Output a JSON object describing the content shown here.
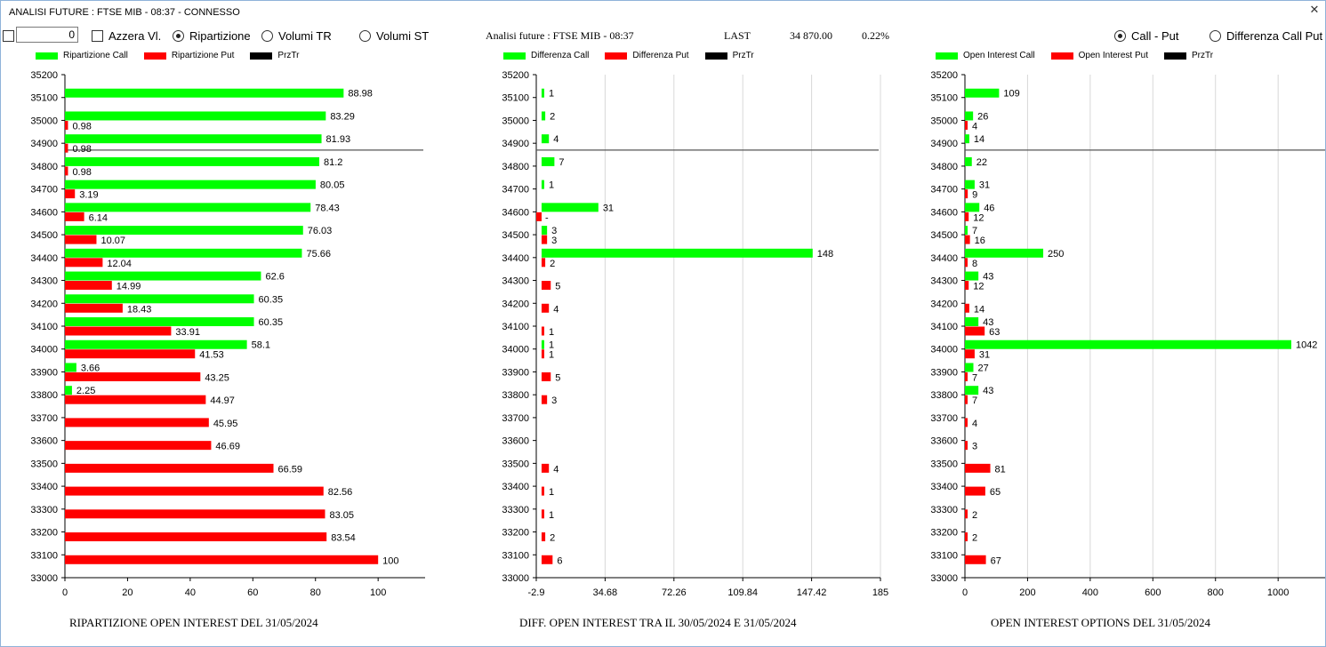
{
  "window": {
    "title": "ANALISI FUTURE : FTSE MIB - 08:37 - CONNESSO"
  },
  "toolbar": {
    "spin_value": "0",
    "azzera_label": "Azzera Vl.",
    "radio_ripartizione": "Ripartizione",
    "radio_volumi_tr": "Volumi TR",
    "radio_volumi_st": "Volumi ST",
    "radio_call_put": "Call - Put",
    "radio_diff_call_put": "Differenza Call Put"
  },
  "info": {
    "label": "Analisi future : FTSE MIB - 08:37",
    "last_label": "LAST",
    "last_value": "34 870.00",
    "change": "0.22%"
  },
  "colors": {
    "call": "#00ff00",
    "put": "#ff0000",
    "prz": "#000000",
    "grid": "#d8d8d8",
    "price_line": "#555555"
  },
  "chart_data": [
    {
      "type": "bar",
      "title": "RIPARTIZIONE OPEN INTEREST DEL 31/05/2024",
      "legend": [
        "Ripartizione Call",
        "Ripartizione Put",
        "PrzTr"
      ],
      "categories": [
        35200,
        35100,
        35000,
        34900,
        34800,
        34700,
        34600,
        34500,
        34400,
        34300,
        34200,
        34100,
        34000,
        33900,
        33800,
        33700,
        33600,
        33500,
        33400,
        33300,
        33200,
        33100,
        33000
      ],
      "series": [
        {
          "name": "Ripartizione Call",
          "values": [
            null,
            88.98,
            83.29,
            81.93,
            81.2,
            80.05,
            78.43,
            76.03,
            75.66,
            62.6,
            60.35,
            60.35,
            58.1,
            3.66,
            2.25,
            null,
            null,
            null,
            null,
            null,
            null,
            null,
            null
          ]
        },
        {
          "name": "Ripartizione Put",
          "values": [
            null,
            null,
            0.98,
            0.98,
            0.98,
            3.19,
            6.14,
            10.07,
            12.04,
            14.99,
            18.43,
            33.91,
            41.53,
            43.25,
            44.97,
            45.95,
            46.69,
            66.59,
            82.56,
            83.05,
            83.54,
            100,
            null
          ]
        }
      ],
      "xlim": [
        0,
        115
      ],
      "xticks": [
        0,
        20,
        40,
        60,
        80,
        100
      ],
      "xgrid": false,
      "price_level": 34870
    },
    {
      "type": "bar",
      "title": "DIFF. OPEN INTEREST TRA IL 30/05/2024 E 31/05/2024",
      "legend": [
        "Differenza Call",
        "Differenza Put",
        "PrzTr"
      ],
      "categories": [
        35200,
        35100,
        35000,
        34900,
        34800,
        34700,
        34600,
        34500,
        34400,
        34300,
        34200,
        34100,
        34000,
        33900,
        33800,
        33700,
        33600,
        33500,
        33400,
        33300,
        33200,
        33100,
        33000
      ],
      "series": [
        {
          "name": "Differenza Call",
          "values": [
            null,
            1,
            2,
            4,
            7,
            1,
            31,
            3,
            148,
            null,
            null,
            null,
            1,
            null,
            null,
            null,
            null,
            null,
            null,
            null,
            null,
            null,
            null
          ]
        },
        {
          "name": "Differenza Put",
          "values": [
            null,
            null,
            null,
            null,
            null,
            null,
            -2.9,
            3,
            2,
            5,
            4,
            1,
            1,
            5,
            3,
            null,
            null,
            4,
            1,
            1,
            2,
            6,
            null
          ]
        }
      ],
      "value_labels_put": [
        null,
        null,
        null,
        null,
        null,
        null,
        "-",
        "3",
        "2",
        "5",
        "4",
        "1",
        "1",
        "5",
        "3",
        null,
        null,
        "4",
        "1",
        "1",
        "2",
        "6",
        null
      ],
      "xlim": [
        -2.9,
        185
      ],
      "xticks": [
        "-2.9",
        "34.68",
        "72.26",
        "109.84",
        "147.42",
        "185"
      ],
      "xgrid": true,
      "price_level": 34870
    },
    {
      "type": "bar",
      "title": "OPEN INTEREST OPTIONS DEL 31/05/2024",
      "legend": [
        "Open Interest Call",
        "Open Interest Put",
        "PrzTr"
      ],
      "categories": [
        35200,
        35100,
        35000,
        34900,
        34800,
        34700,
        34600,
        34500,
        34400,
        34300,
        34200,
        34100,
        34000,
        33900,
        33800,
        33700,
        33600,
        33500,
        33400,
        33300,
        33200,
        33100,
        33000
      ],
      "series": [
        {
          "name": "Open Interest Call",
          "values": [
            null,
            109,
            26,
            14,
            22,
            31,
            46,
            7,
            250,
            43,
            null,
            43,
            1042,
            27,
            43,
            null,
            null,
            null,
            null,
            null,
            null,
            null,
            null
          ]
        },
        {
          "name": "Open Interest Put",
          "values": [
            null,
            null,
            4,
            null,
            null,
            9,
            12,
            16,
            8,
            12,
            14,
            63,
            31,
            7,
            7,
            4,
            3,
            81,
            65,
            2,
            2,
            67,
            null
          ]
        }
      ],
      "xlim": [
        0,
        1150
      ],
      "xticks": [
        0,
        200,
        400,
        600,
        800,
        1000
      ],
      "xgrid": true,
      "price_level": 34870
    }
  ]
}
